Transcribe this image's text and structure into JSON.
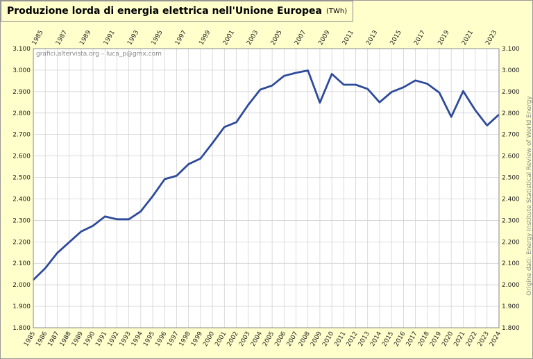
{
  "title": "Produzione lorda di energia elettrica nell'Unione Europea",
  "unit": "(TWh)",
  "watermark": "grafici.altervista.org – luca_p@gmx.com",
  "source": "Origine dati: Energy Institute Statistical Review of World Energy",
  "colors": {
    "background": "#ffffcc",
    "plot": "#ffffff",
    "grid": "#cccccc",
    "line": "#2e4a9a"
  },
  "chart_data": {
    "type": "line",
    "xlabel": "",
    "ylabel": "",
    "ylim": [
      1800,
      3100
    ],
    "yticks": [
      1800,
      1900,
      2000,
      2100,
      2200,
      2300,
      2400,
      2500,
      2600,
      2700,
      2800,
      2900,
      3000,
      3100
    ],
    "ytick_labels": [
      "1.800",
      "1.900",
      "2.000",
      "2.100",
      "2.200",
      "2.300",
      "2.400",
      "2.500",
      "2.600",
      "2.700",
      "2.800",
      "2.900",
      "3.000",
      "3.100"
    ],
    "x": [
      1985,
      1986,
      1987,
      1988,
      1989,
      1990,
      1991,
      1992,
      1993,
      1994,
      1995,
      1996,
      1997,
      1998,
      1999,
      2000,
      2001,
      2002,
      2003,
      2004,
      2005,
      2006,
      2007,
      2008,
      2009,
      2010,
      2011,
      2012,
      2013,
      2014,
      2015,
      2016,
      2017,
      2018,
      2019,
      2020,
      2021,
      2022,
      2023,
      2024
    ],
    "top_tick_labels": [
      "1985",
      "1987",
      "1989",
      "1991",
      "1993",
      "1995",
      "1997",
      "1999",
      "2001",
      "2003",
      "2005",
      "2007",
      "2009",
      "2011",
      "2013",
      "2015",
      "2017",
      "2019",
      "2021",
      "2023"
    ],
    "series": [
      {
        "values": [
          2023,
          2077,
          2148,
          2198,
          2248,
          2275,
          2318,
          2305,
          2305,
          2342,
          2413,
          2492,
          2508,
          2562,
          2588,
          2660,
          2735,
          2757,
          2838,
          2909,
          2928,
          2973,
          2987,
          2998,
          2848,
          2982,
          2932,
          2932,
          2912,
          2850,
          2898,
          2920,
          2952,
          2936,
          2895,
          2782,
          2902,
          2814,
          2742,
          2793
        ]
      }
    ],
    "grid": true,
    "legend": "none"
  }
}
